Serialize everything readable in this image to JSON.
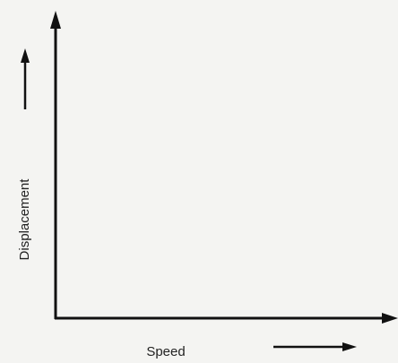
{
  "axes": {
    "x_label": "Speed",
    "y_label": "Displacement"
  }
}
